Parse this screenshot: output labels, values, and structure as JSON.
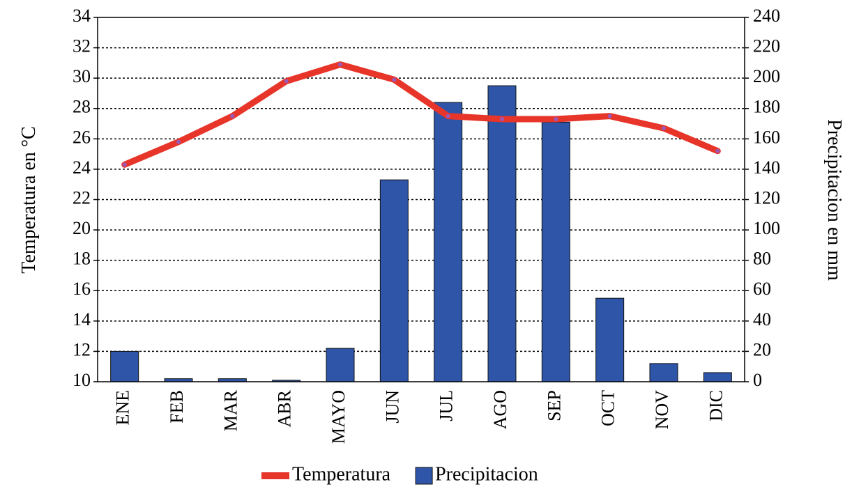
{
  "chart_data": {
    "type": "bar-line",
    "categories": [
      "ENE",
      "FEB",
      "MAR",
      "ABR",
      "MAYO",
      "JUN",
      "JUL",
      "AGO",
      "SEP",
      "OCT",
      "NOV",
      "DIC"
    ],
    "series": [
      {
        "name": "Temperatura",
        "type": "line",
        "axis": "y",
        "color": "#e8352a",
        "marker_color": "#9b59b6",
        "values": [
          24.3,
          25.8,
          27.5,
          29.8,
          30.9,
          29.9,
          27.5,
          27.3,
          27.3,
          27.5,
          26.7,
          25.2
        ]
      },
      {
        "name": "Precipitacion",
        "type": "bar",
        "axis": "y2",
        "color": "#2e55a8",
        "values": [
          20,
          2,
          2,
          1,
          22,
          133,
          184,
          195,
          171,
          55,
          12,
          6
        ]
      }
    ],
    "ylabel": "Temperatura en °C",
    "y2label": "Precipitacion en mm",
    "ylim": [
      10,
      34
    ],
    "yticks": [
      10,
      12,
      14,
      16,
      18,
      20,
      22,
      24,
      26,
      28,
      30,
      32,
      34
    ],
    "y2lim": [
      0,
      240
    ],
    "y2ticks": [
      0,
      20,
      40,
      60,
      80,
      100,
      120,
      140,
      160,
      180,
      200,
      220,
      240
    ],
    "grid": true,
    "legend": "bottom"
  }
}
